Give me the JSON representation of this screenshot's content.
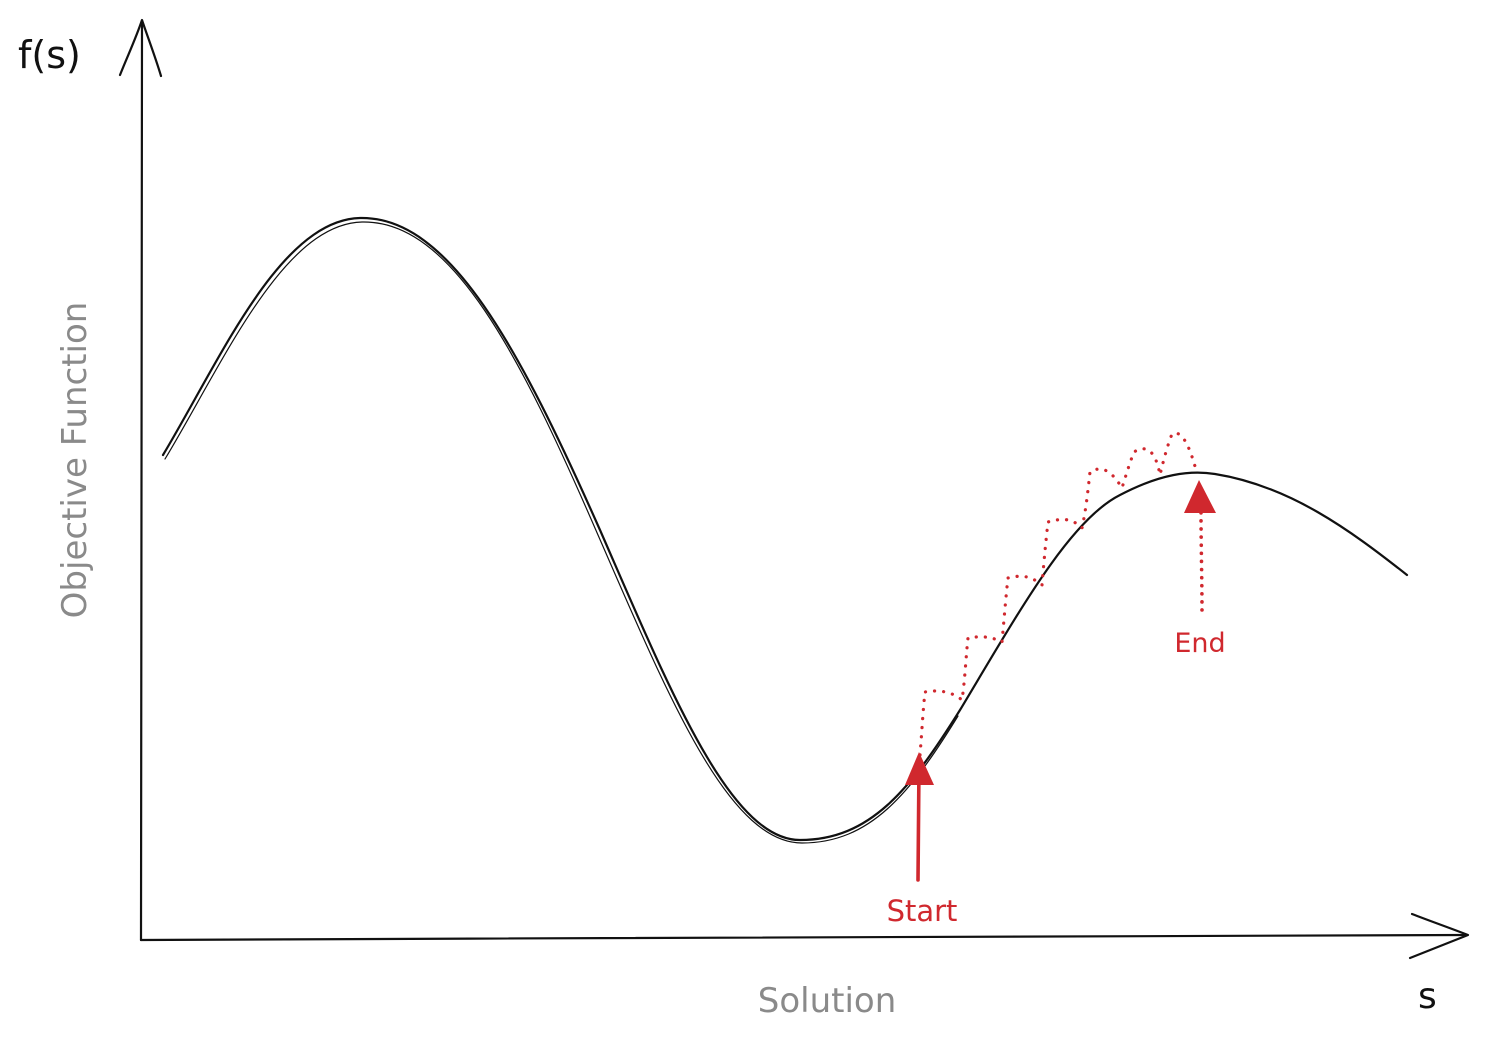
{
  "axes": {
    "y_axis_label": "f(s)",
    "x_axis_label": "s",
    "y_title": "Objective Function",
    "x_title": "Solution"
  },
  "markers": {
    "start_label": "Start",
    "end_label": "End"
  },
  "colors": {
    "ink": "#111111",
    "muted": "#8a8a8a",
    "accent": "#d0282e"
  }
}
